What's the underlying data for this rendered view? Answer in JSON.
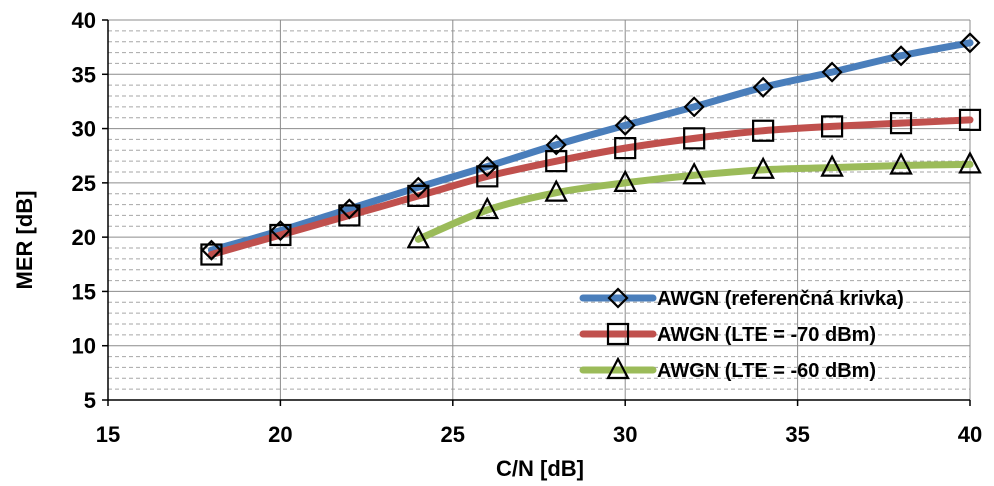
{
  "chart_data": {
    "type": "line",
    "title": "",
    "xlabel": "C/N [dB]",
    "ylabel": "MER [dB]",
    "xlim": [
      15,
      40
    ],
    "ylim": [
      5,
      40
    ],
    "x_ticks": [
      15,
      20,
      25,
      30,
      35,
      40
    ],
    "y_ticks": [
      5,
      10,
      15,
      20,
      25,
      30,
      35,
      40
    ],
    "x_tick_labels": [
      "15",
      "20",
      "25",
      "30",
      "35",
      "40"
    ],
    "y_tick_labels": [
      "5",
      "10",
      "15",
      "20",
      "25",
      "30",
      "35",
      "40"
    ],
    "grid": "major solid, minor dashed horizontal",
    "legend_position": "bottom-right",
    "series": [
      {
        "name": "AWGN (referenčná krivka)",
        "color": "#4a7ebb",
        "marker": "diamond",
        "x": [
          18,
          20,
          22,
          24,
          26,
          28,
          30,
          32,
          34,
          36,
          38,
          40
        ],
        "y": [
          18.8,
          20.6,
          22.6,
          24.6,
          26.5,
          28.5,
          30.3,
          32.0,
          33.8,
          35.2,
          36.7,
          37.9
        ]
      },
      {
        "name": "AWGN (LTE = -70 dBm)",
        "color": "#c0504d",
        "marker": "square",
        "x": [
          18,
          20,
          22,
          24,
          26,
          28,
          30,
          32,
          34,
          36,
          38,
          40
        ],
        "y": [
          18.4,
          20.2,
          22.0,
          23.8,
          25.6,
          27.0,
          28.2,
          29.1,
          29.8,
          30.2,
          30.5,
          30.8
        ]
      },
      {
        "name": "AWGN (LTE = -60 dBm)",
        "color": "#9bbb59",
        "marker": "triangle",
        "x": [
          24,
          26,
          28,
          30,
          32,
          34,
          36,
          38,
          40
        ],
        "y": [
          19.8,
          22.5,
          24.1,
          25.0,
          25.7,
          26.2,
          26.4,
          26.6,
          26.7
        ]
      }
    ]
  }
}
